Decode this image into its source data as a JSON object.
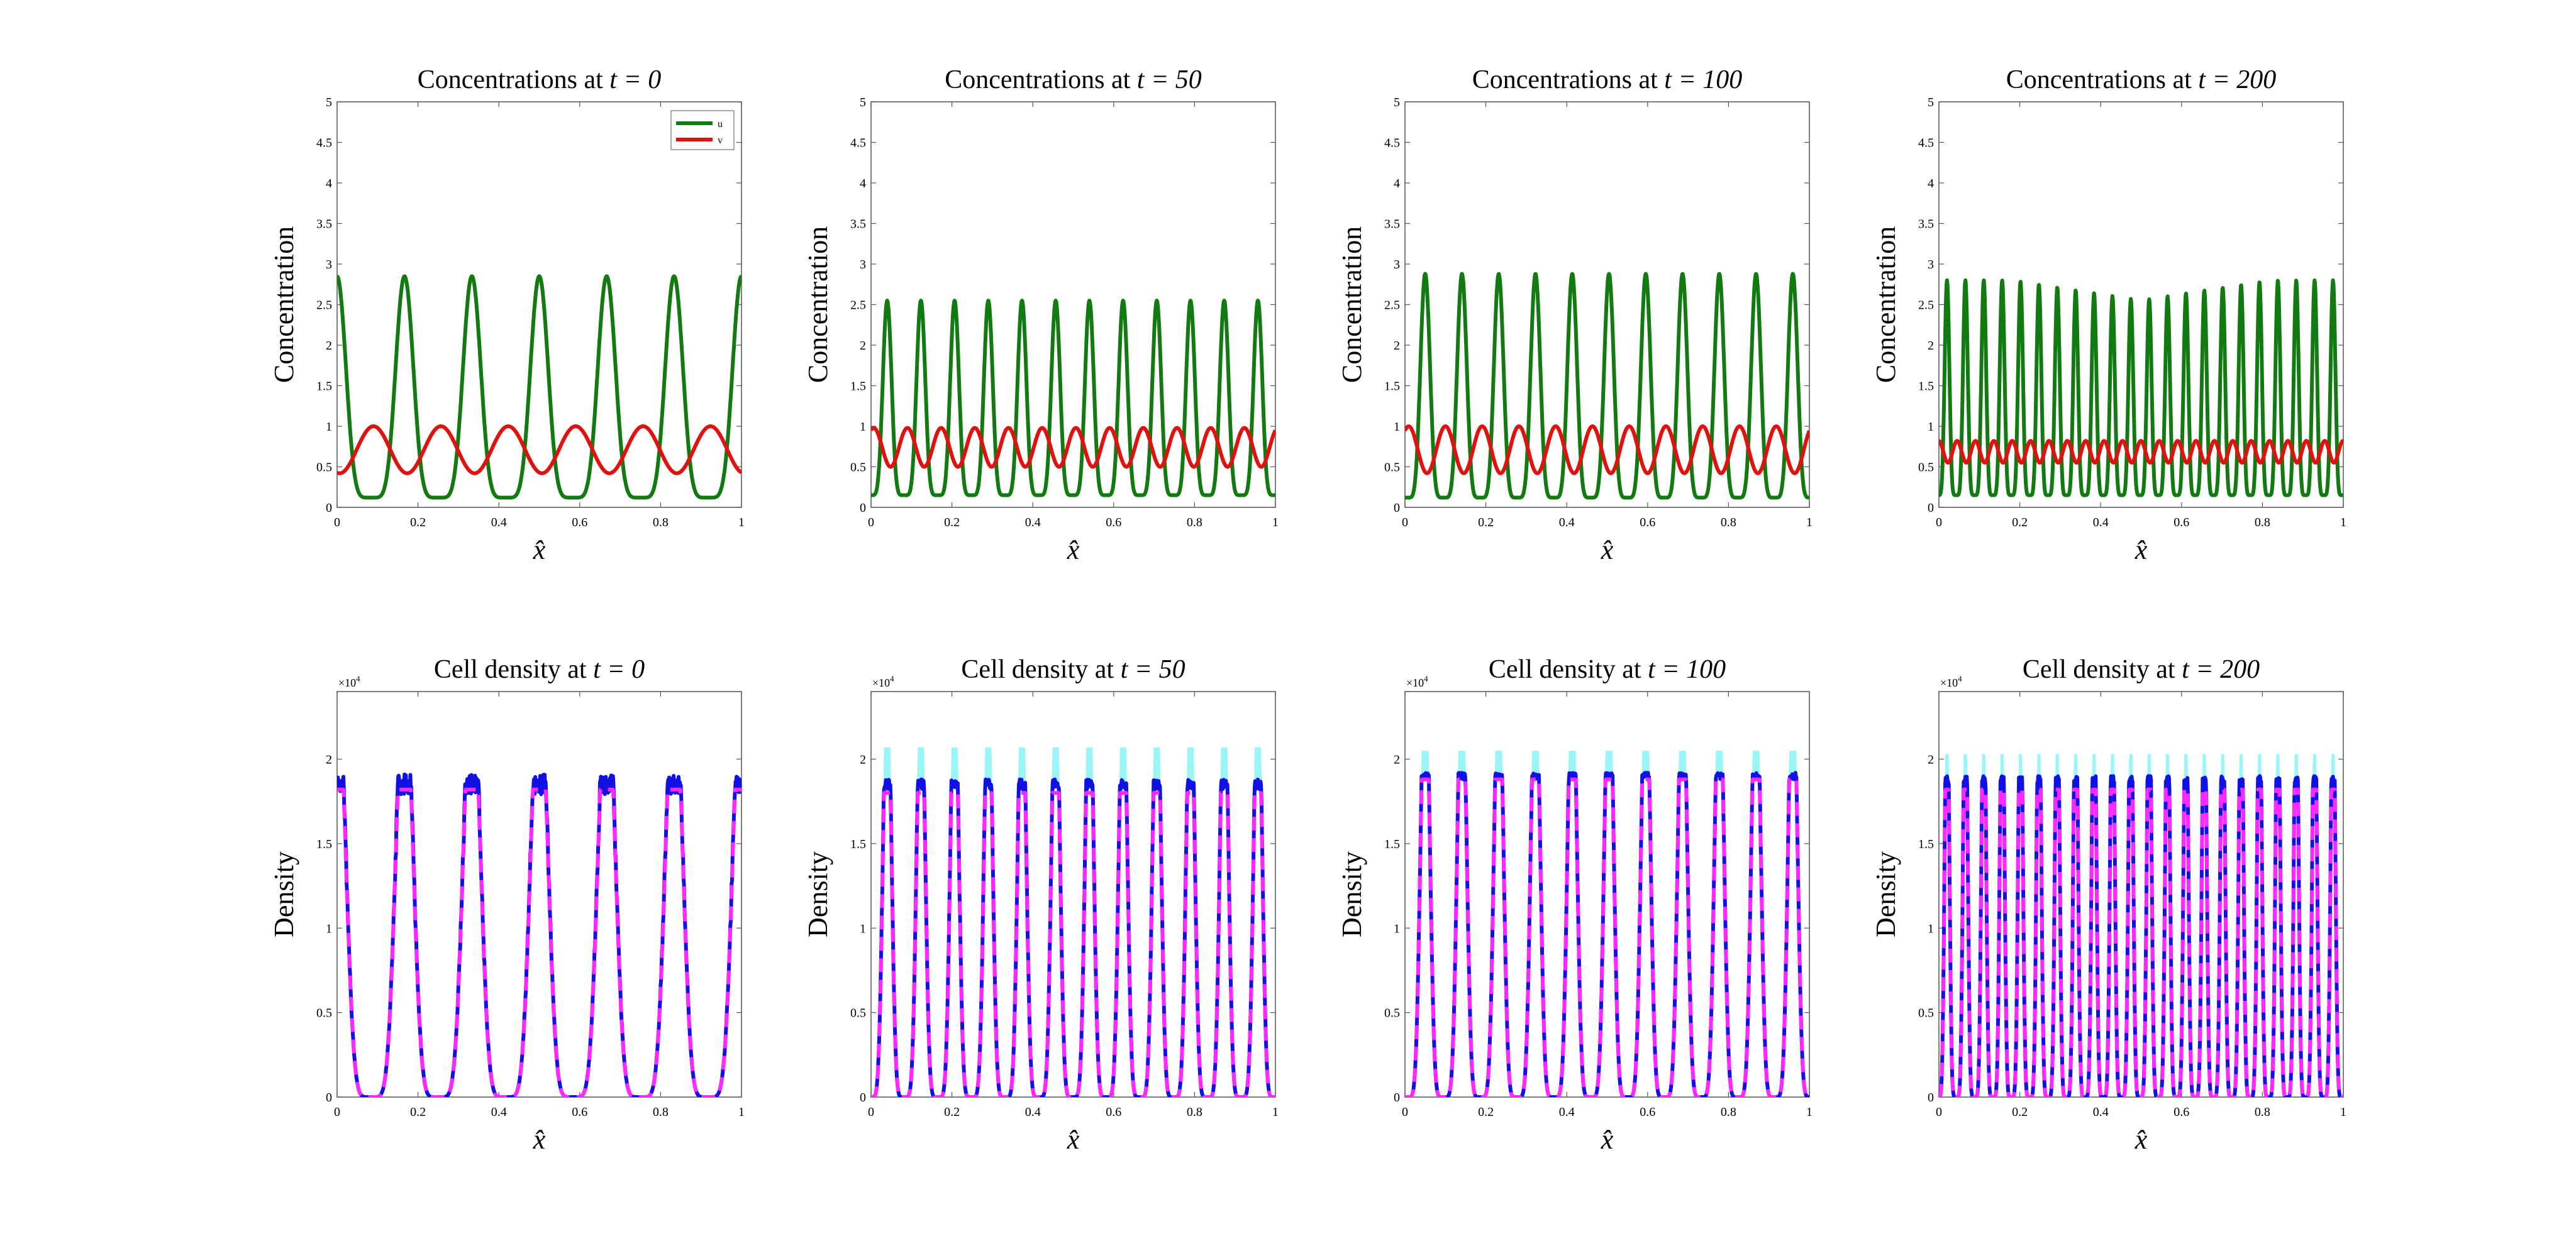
{
  "figure": {
    "layout": "2 rows x 4 columns",
    "colors": {
      "u": "#117a11",
      "v": "#e0120f",
      "density": "#1111e6",
      "density_mean": "#ff28ff",
      "density_range": "#8ff5f5",
      "axis": "#555555"
    }
  },
  "chart_data": [
    {
      "type": "line",
      "title_prefix": "Concentrations at ",
      "title_math": "t = 0",
      "xlabel": "x̂",
      "ylabel": "Concentration",
      "xlim": [
        0,
        1
      ],
      "ylim": [
        0,
        5
      ],
      "xticks": [
        "0",
        "0.2",
        "0.4",
        "0.6",
        "0.8",
        "1"
      ],
      "yticks": [
        "0",
        "0.5",
        "1",
        "1.5",
        "2",
        "2.5",
        "3",
        "3.5",
        "4",
        "4.5",
        "5"
      ],
      "legend": [
        "u",
        "v"
      ],
      "legend_position": "top-right",
      "series": [
        {
          "name": "u",
          "color": "#117a11",
          "peaks": 6,
          "min": 0.12,
          "max": 2.85,
          "phase": 0.0
        },
        {
          "name": "v",
          "color": "#e0120f",
          "peaks": 6,
          "min": 0.42,
          "max": 1.0,
          "phase": 0.09
        }
      ]
    },
    {
      "type": "line",
      "title_prefix": "Concentrations at ",
      "title_math": "t = 50",
      "xlabel": "x̂",
      "ylabel": "Concentration",
      "xlim": [
        0,
        1
      ],
      "ylim": [
        0,
        5
      ],
      "xticks": [
        "0",
        "0.2",
        "0.4",
        "0.6",
        "0.8",
        "1"
      ],
      "yticks": [
        "0",
        "0.5",
        "1",
        "1.5",
        "2",
        "2.5",
        "3",
        "3.5",
        "4",
        "4.5",
        "5"
      ],
      "series": [
        {
          "name": "u",
          "color": "#117a11",
          "peaks": 12,
          "min": 0.15,
          "max": 2.55,
          "phase": 0.04
        },
        {
          "name": "v",
          "color": "#e0120f",
          "peaks": 12,
          "min": 0.5,
          "max": 0.98,
          "phase": 0.09
        }
      ]
    },
    {
      "type": "line",
      "title_prefix": "Concentrations at ",
      "title_math": "t = 100",
      "xlabel": "x̂",
      "ylabel": "Concentration",
      "xlim": [
        0,
        1
      ],
      "ylim": [
        0,
        5
      ],
      "xticks": [
        "0",
        "0.2",
        "0.4",
        "0.6",
        "0.8",
        "1"
      ],
      "yticks": [
        "0",
        "0.5",
        "1",
        "1.5",
        "2",
        "2.5",
        "3",
        "3.5",
        "4",
        "4.5",
        "5"
      ],
      "series": [
        {
          "name": "u",
          "color": "#117a11",
          "peaks": 11,
          "min": 0.12,
          "max": 2.88,
          "phase": 0.05
        },
        {
          "name": "v",
          "color": "#e0120f",
          "peaks": 11,
          "min": 0.42,
          "max": 1.0,
          "phase": 0.1
        }
      ]
    },
    {
      "type": "line",
      "title_prefix": "Concentrations at ",
      "title_math": "t = 200",
      "xlabel": "x̂",
      "ylabel": "Concentration",
      "xlim": [
        0,
        1
      ],
      "ylim": [
        0,
        5
      ],
      "xticks": [
        "0",
        "0.2",
        "0.4",
        "0.6",
        "0.8",
        "1"
      ],
      "yticks": [
        "0",
        "0.5",
        "1",
        "1.5",
        "2",
        "2.5",
        "3",
        "3.5",
        "4",
        "4.5",
        "5"
      ],
      "series": [
        {
          "name": "u",
          "color": "#117a11",
          "peaks": 22,
          "min": 0.15,
          "max": 2.8,
          "dip_max": 2.55,
          "phase": 0.02
        },
        {
          "name": "v",
          "color": "#e0120f",
          "peaks": 22,
          "min": 0.55,
          "max": 0.82,
          "phase": 0.045
        }
      ]
    },
    {
      "type": "line",
      "title_prefix": "Cell density at ",
      "title_math": "t = 0",
      "xlabel": "x̂",
      "ylabel": "Density",
      "y_multiplier": "×10",
      "y_exponent": "4",
      "xlim": [
        0,
        1
      ],
      "ylim": [
        0,
        2.4
      ],
      "xticks": [
        "0",
        "0.2",
        "0.4",
        "0.6",
        "0.8",
        "1"
      ],
      "yticks": [
        "0",
        "0.5",
        "1",
        "1.5",
        "2"
      ],
      "series": [
        {
          "name": "density",
          "color": "#1111e6",
          "peaks": 6,
          "min": 0.0,
          "max": 1.85,
          "phase": 0.0,
          "noise": 0.06
        },
        {
          "name": "mean",
          "color": "#ff28ff",
          "peaks": 6,
          "min": 0.0,
          "max": 1.82,
          "phase": 0.0,
          "dashed": true
        }
      ]
    },
    {
      "type": "line",
      "title_prefix": "Cell density at ",
      "title_math": "t = 50",
      "xlabel": "x̂",
      "ylabel": "Density",
      "y_multiplier": "×10",
      "y_exponent": "4",
      "xlim": [
        0,
        1
      ],
      "ylim": [
        0,
        2.4
      ],
      "xticks": [
        "0",
        "0.2",
        "0.4",
        "0.6",
        "0.8",
        "1"
      ],
      "yticks": [
        "0",
        "0.5",
        "1",
        "1.5",
        "2"
      ],
      "series": [
        {
          "name": "range",
          "color": "#8ff5f5",
          "peaks": 12,
          "min": 0.0,
          "max": 1.95,
          "phase": 0.04,
          "band": 0.12
        },
        {
          "name": "density",
          "color": "#1111e6",
          "peaks": 12,
          "min": 0.0,
          "max": 1.85,
          "phase": 0.04,
          "noise": 0.03
        },
        {
          "name": "mean",
          "color": "#ff28ff",
          "peaks": 12,
          "min": 0.0,
          "max": 1.8,
          "phase": 0.04,
          "dashed": true
        }
      ]
    },
    {
      "type": "line",
      "title_prefix": "Cell density at ",
      "title_math": "t = 100",
      "xlabel": "x̂",
      "ylabel": "Density",
      "y_multiplier": "×10",
      "y_exponent": "4",
      "xlim": [
        0,
        1
      ],
      "ylim": [
        0,
        2.4
      ],
      "xticks": [
        "0",
        "0.2",
        "0.4",
        "0.6",
        "0.8",
        "1"
      ],
      "yticks": [
        "0",
        "0.5",
        "1",
        "1.5",
        "2"
      ],
      "series": [
        {
          "name": "range",
          "color": "#8ff5f5",
          "peaks": 11,
          "min": 0.0,
          "max": 1.97,
          "phase": 0.05,
          "band": 0.08
        },
        {
          "name": "density",
          "color": "#1111e6",
          "peaks": 11,
          "min": 0.0,
          "max": 1.9,
          "phase": 0.05,
          "noise": 0.02
        },
        {
          "name": "mean",
          "color": "#ff28ff",
          "peaks": 11,
          "min": 0.0,
          "max": 1.88,
          "phase": 0.05,
          "dashed": true
        }
      ]
    },
    {
      "type": "line",
      "title_prefix": "Cell density at ",
      "title_math": "t = 200",
      "xlabel": "x̂",
      "ylabel": "Density",
      "y_multiplier": "×10",
      "y_exponent": "4",
      "xlim": [
        0,
        1
      ],
      "ylim": [
        0,
        2.4
      ],
      "xticks": [
        "0",
        "0.2",
        "0.4",
        "0.6",
        "0.8",
        "1"
      ],
      "yticks": [
        "0",
        "0.5",
        "1",
        "1.5",
        "2"
      ],
      "series": [
        {
          "name": "range",
          "color": "#8ff5f5",
          "peaks": 22,
          "min": 0.0,
          "max": 1.95,
          "phase": 0.02,
          "band": 0.08
        },
        {
          "name": "density",
          "color": "#1111e6",
          "peaks": 22,
          "min": 0.0,
          "max": 1.88,
          "phase": 0.02,
          "noise": 0.02
        },
        {
          "name": "mean",
          "color": "#ff28ff",
          "peaks": 22,
          "min": 0.0,
          "max": 1.82,
          "phase": 0.02,
          "dashed": true
        }
      ]
    }
  ]
}
